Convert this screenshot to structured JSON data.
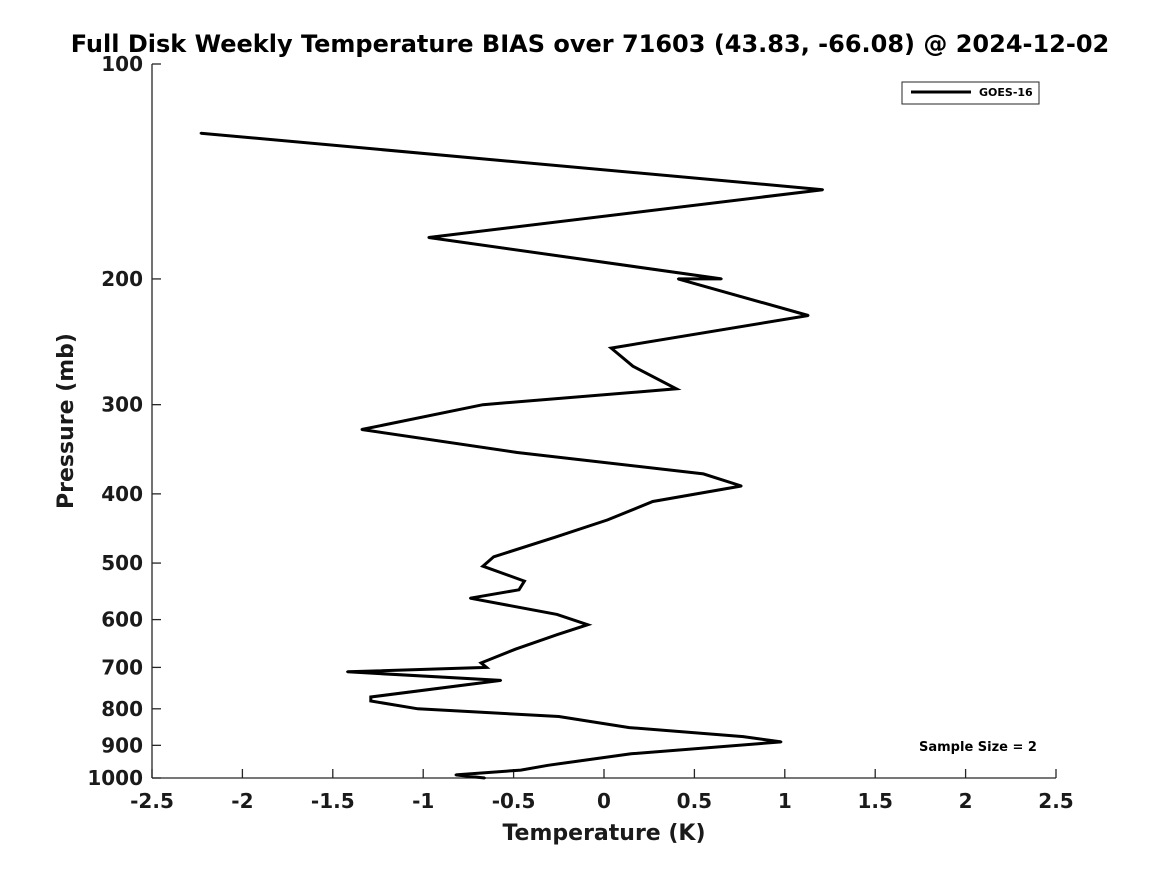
{
  "chart_data": {
    "type": "line",
    "title": "Full Disk Weekly Temperature BIAS over 71603 (43.83, -66.08) @ 2024-12-02",
    "xlabel": "Temperature (K)",
    "ylabel": "Pressure (mb)",
    "xlim": [
      -2.5,
      2.5
    ],
    "ylim": [
      100,
      1000
    ],
    "yscale": "log",
    "y_reversed": true,
    "x_ticks": [
      "-2.5",
      "-2",
      "-1.5",
      "-1",
      "-0.5",
      "0",
      "0.5",
      "1",
      "1.5",
      "2",
      "2.5"
    ],
    "y_ticks": [
      "100",
      "200",
      "300",
      "400",
      "500",
      "600",
      "700",
      "800",
      "900",
      "1000"
    ],
    "legend": {
      "placement": "top-right",
      "entries": [
        "GOES-16"
      ]
    },
    "annotation": "Sample Size = 2",
    "series": [
      {
        "name": "GOES-16",
        "color": "#000000",
        "points": [
          {
            "t": -2.23,
            "p": 125
          },
          {
            "t": 1.21,
            "p": 150
          },
          {
            "t": -0.97,
            "p": 175
          },
          {
            "t": 0.65,
            "p": 200
          },
          {
            "t": 0.41,
            "p": 200
          },
          {
            "t": 1.13,
            "p": 225
          },
          {
            "t": 0.04,
            "p": 250
          },
          {
            "t": 0.16,
            "p": 265
          },
          {
            "t": 0.4,
            "p": 285
          },
          {
            "t": -0.67,
            "p": 300
          },
          {
            "t": -1.34,
            "p": 325
          },
          {
            "t": -0.48,
            "p": 350
          },
          {
            "t": 0.55,
            "p": 375
          },
          {
            "t": 0.76,
            "p": 390
          },
          {
            "t": 0.27,
            "p": 410
          },
          {
            "t": 0.02,
            "p": 435
          },
          {
            "t": -0.27,
            "p": 460
          },
          {
            "t": -0.61,
            "p": 490
          },
          {
            "t": -0.67,
            "p": 505
          },
          {
            "t": -0.44,
            "p": 530
          },
          {
            "t": -0.47,
            "p": 545
          },
          {
            "t": -0.74,
            "p": 560
          },
          {
            "t": -0.26,
            "p": 590
          },
          {
            "t": -0.09,
            "p": 610
          },
          {
            "t": -0.26,
            "p": 630
          },
          {
            "t": -0.49,
            "p": 660
          },
          {
            "t": -0.68,
            "p": 690
          },
          {
            "t": -0.65,
            "p": 700
          },
          {
            "t": -1.42,
            "p": 710
          },
          {
            "t": -0.57,
            "p": 730
          },
          {
            "t": -1.29,
            "p": 770
          },
          {
            "t": -1.29,
            "p": 780
          },
          {
            "t": -1.03,
            "p": 800
          },
          {
            "t": -0.25,
            "p": 820
          },
          {
            "t": 0.14,
            "p": 850
          },
          {
            "t": 0.77,
            "p": 875
          },
          {
            "t": 0.98,
            "p": 890
          },
          {
            "t": 0.15,
            "p": 925
          },
          {
            "t": -0.31,
            "p": 960
          },
          {
            "t": -0.46,
            "p": 975
          },
          {
            "t": -0.82,
            "p": 990
          },
          {
            "t": -0.66,
            "p": 1000
          }
        ]
      }
    ]
  }
}
